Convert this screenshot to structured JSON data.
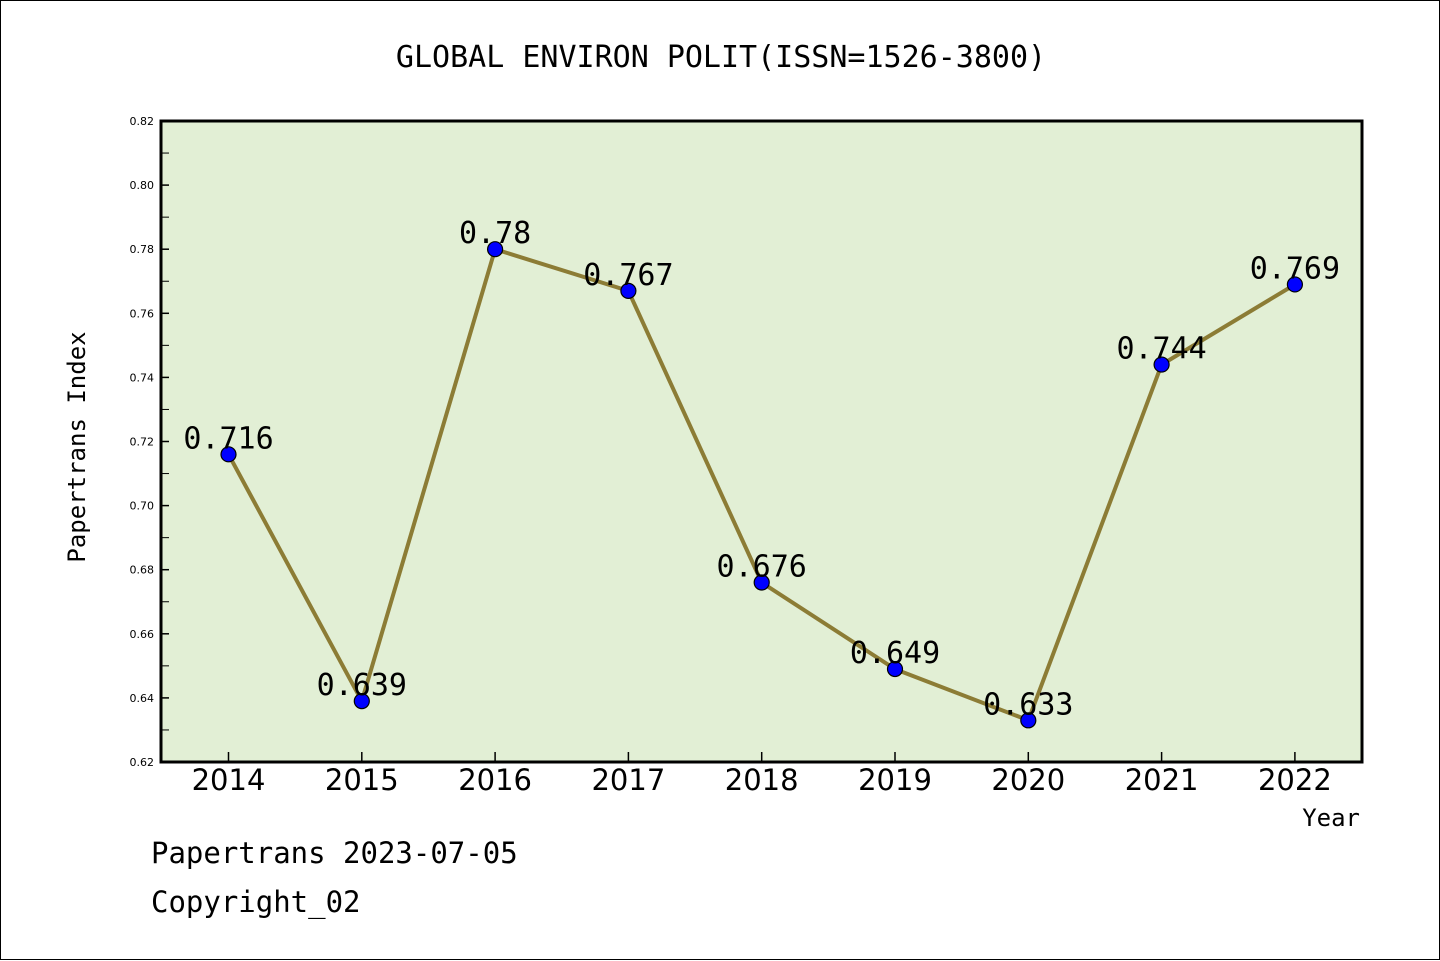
{
  "chart_data": {
    "type": "line",
    "title": "GLOBAL ENVIRON POLIT(ISSN=1526-3800)",
    "xlabel": "Year",
    "ylabel": "Papertrans Index",
    "categories": [
      "2014",
      "2015",
      "2016",
      "2017",
      "2018",
      "2019",
      "2020",
      "2021",
      "2022"
    ],
    "series": [
      {
        "values": [
          0.716,
          0.639,
          0.78,
          0.767,
          0.676,
          0.649,
          0.633,
          0.744,
          0.769
        ]
      }
    ],
    "data_labels": [
      "0.716",
      "0.639",
      "0.78",
      "0.767",
      "0.676",
      "0.649",
      "0.633",
      "0.744",
      "0.769"
    ],
    "ylim": [
      0.62,
      0.82
    ],
    "yticks": [
      "0.62",
      "0.64",
      "0.66",
      "0.68",
      "0.70",
      "0.72",
      "0.74",
      "0.76",
      "0.78",
      "0.80",
      "0.82"
    ],
    "grid": false,
    "colors": {
      "plot_background": "#e2efd5",
      "line": "#8c7c35",
      "marker": "#0000ff"
    }
  },
  "footer": {
    "line1": "Papertrans 2023-07-05",
    "line2": "Copyright_02"
  }
}
